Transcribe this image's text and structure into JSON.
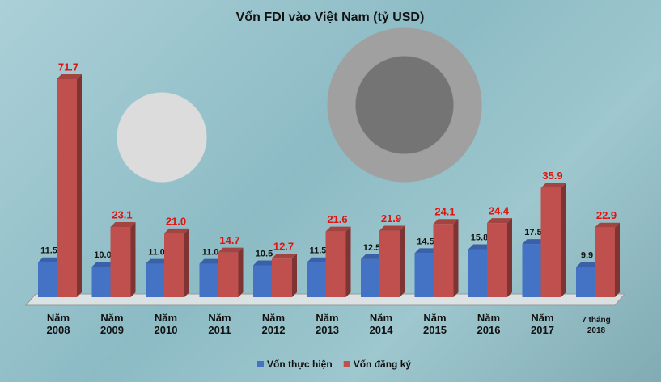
{
  "chart_data": {
    "type": "bar3d",
    "title": "Vốn FDI vào Việt Nam (tỷ USD)",
    "categories": [
      "Năm 2008",
      "Năm 2009",
      "Năm 2010",
      "Năm 2011",
      "Năm 2012",
      "Năm 2013",
      "Năm 2014",
      "Năm 2015",
      "Năm 2016",
      "Năm 2017",
      "7 tháng 2018"
    ],
    "series": [
      {
        "name": "Vốn thực hiện",
        "color": "#4472c4",
        "label_color": "#111111",
        "values": [
          11.5,
          10.0,
          11.0,
          11.0,
          10.5,
          11.5,
          12.5,
          14.5,
          15.8,
          17.5,
          9.9
        ],
        "value_labels": [
          "11.5",
          "10.0",
          "11.0",
          "11.0",
          "10.5",
          "11.5",
          "12.5",
          "14.5",
          "15.8",
          "17.5",
          "9.9"
        ]
      },
      {
        "name": "Vốn đăng ký",
        "color": "#c0504d",
        "label_color": "#e0140e",
        "values": [
          71.7,
          23.1,
          21.0,
          14.7,
          12.7,
          21.6,
          21.9,
          24.1,
          24.4,
          35.9,
          22.9
        ],
        "value_labels": [
          "71.7",
          "23.1",
          "21.0",
          "14.7",
          "12.7",
          "21.6",
          "21.9",
          "24.1",
          "24.4",
          "35.9",
          "22.9"
        ]
      }
    ]
  }
}
